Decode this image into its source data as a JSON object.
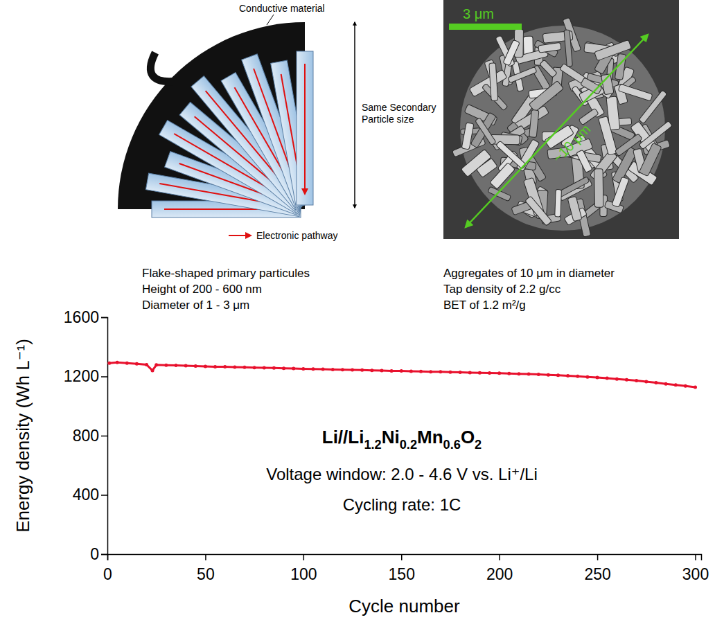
{
  "schematic": {
    "conductive_label": "Conductive material",
    "size_label": "Same Secondary Particle size",
    "pathway_label": "Electronic pathway"
  },
  "sem_image": {
    "scale_bar": "3 μm",
    "diameter_label": "~10 μm"
  },
  "captions": {
    "left": [
      "Flake-shaped primary particules",
      "Height of 200 - 600 nm",
      "Diameter of 1 - 3 μm"
    ],
    "right": [
      "Aggregates of 10 μm in diameter",
      "Tap density of 2.2 g/cc",
      "BET of 1.2 m²/g"
    ]
  },
  "chart_data": {
    "type": "line",
    "x_label": "Cycle number",
    "y_label": "Energy density (Wh L⁻¹)",
    "annotations": [
      "Li//Li1.2Ni0.2Mn0.6O2",
      "Voltage window: 2.0 - 4.6 V vs. Li⁺/Li",
      "Cycling rate: 1C"
    ],
    "x": [
      1,
      5,
      10,
      15,
      20,
      23,
      25,
      30,
      35,
      40,
      45,
      50,
      55,
      60,
      65,
      70,
      75,
      80,
      85,
      90,
      95,
      100,
      105,
      110,
      115,
      120,
      125,
      130,
      135,
      140,
      145,
      150,
      155,
      160,
      165,
      170,
      175,
      180,
      185,
      190,
      195,
      200,
      205,
      210,
      215,
      220,
      225,
      230,
      235,
      240,
      245,
      250,
      255,
      260,
      265,
      270,
      275,
      280,
      285,
      290,
      295,
      300
    ],
    "series": [
      {
        "color": "#e8112d",
        "marker": "circle",
        "values": [
          1290,
          1295,
          1290,
          1285,
          1280,
          1240,
          1278,
          1276,
          1275,
          1272,
          1270,
          1268,
          1266,
          1265,
          1263,
          1262,
          1260,
          1258,
          1257,
          1255,
          1254,
          1252,
          1250,
          1249,
          1247,
          1246,
          1244,
          1243,
          1241,
          1240,
          1238,
          1237,
          1235,
          1234,
          1232,
          1231,
          1229,
          1228,
          1226,
          1225,
          1223,
          1222,
          1220,
          1218,
          1216,
          1214,
          1211,
          1208,
          1205,
          1201,
          1197,
          1193,
          1188,
          1183,
          1178,
          1172,
          1165,
          1158,
          1150,
          1143,
          1136,
          1128
        ]
      }
    ],
    "xlim": [
      0,
      303
    ],
    "xticks": [
      0,
      50,
      100,
      150,
      200,
      250,
      300
    ],
    "ylim": [
      0,
      1600
    ],
    "yticks": [
      0,
      400,
      800,
      1200,
      1600
    ],
    "grid": false
  }
}
